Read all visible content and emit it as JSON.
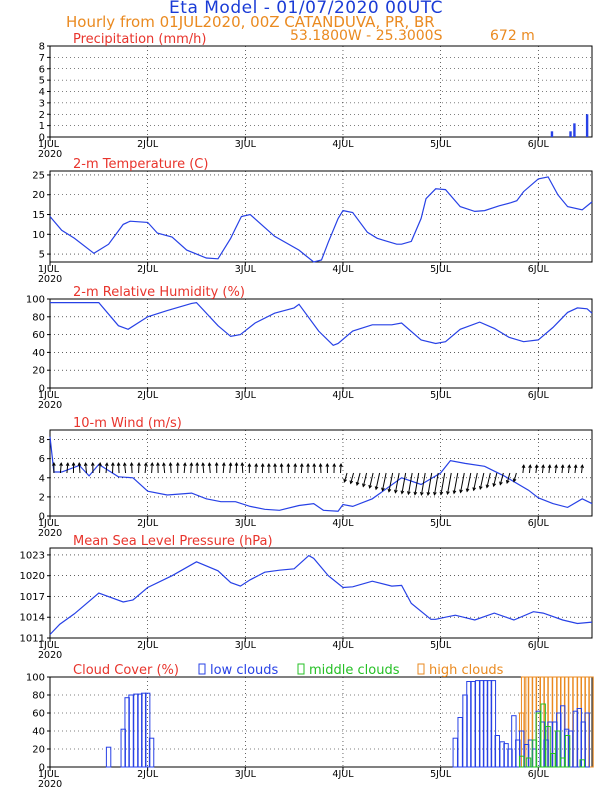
{
  "header": {
    "title": "Eta Model - 01/07/2020 00UTC",
    "subtitle": "Hourly from 01JUL2020, 00Z  CATANDUVA, PR, BR",
    "coords": "53.1800W - 25.3000S",
    "elevation": "672   m"
  },
  "colors": {
    "panel_title": "#e8342c",
    "line": "#2741e6",
    "low_clouds": "#2741e6",
    "middle_clouds": "#25c025",
    "high_clouds": "#ea8a20",
    "vector": "#000000"
  },
  "x_axis": {
    "ticks": [
      {
        "label": "1JUL",
        "day": 0
      },
      {
        "label": "2JUL",
        "day": 1
      },
      {
        "label": "3JUL",
        "day": 2
      },
      {
        "label": "4JUL",
        "day": 3
      },
      {
        "label": "5JUL",
        "day": 4
      },
      {
        "label": "6JUL",
        "day": 5
      }
    ],
    "year_label": "2020",
    "range": [
      0,
      5.55
    ]
  },
  "chart_data": [
    {
      "id": "precip",
      "type": "bar",
      "title": "Precipitation (mm/h)",
      "ylim": [
        0,
        8
      ],
      "yticks": [
        0,
        1,
        2,
        3,
        4,
        5,
        6,
        7,
        8
      ],
      "grid": true,
      "x": [
        5.14,
        5.33,
        5.37,
        5.5
      ],
      "values": [
        0.5,
        0.5,
        1.2,
        2.0
      ]
    },
    {
      "id": "temp",
      "type": "line",
      "title": "2-m Temperature (C)",
      "ylim": [
        3,
        26
      ],
      "yticks": [
        5,
        10,
        15,
        20,
        25
      ],
      "grid": true,
      "x": [
        0,
        0.12,
        0.25,
        0.45,
        0.6,
        0.75,
        0.82,
        1.0,
        1.1,
        1.25,
        1.4,
        1.6,
        1.72,
        1.85,
        1.9,
        1.96,
        2.05,
        2.3,
        2.55,
        2.6,
        2.7,
        2.78,
        2.85,
        2.95,
        3.0,
        3.1,
        3.25,
        3.35,
        3.55,
        3.6,
        3.7,
        3.8,
        3.85,
        3.95,
        4.05,
        4.2,
        4.35,
        4.45,
        4.6,
        4.72,
        4.78,
        4.85,
        5.0,
        5.1,
        5.2,
        5.3,
        5.45,
        5.55
      ],
      "values": [
        14.5,
        11,
        9,
        5.2,
        7.5,
        12.5,
        13.3,
        13,
        10.3,
        9.3,
        6,
        4,
        3.8,
        9,
        11.5,
        14.5,
        15,
        9.5,
        6,
        5,
        3,
        3.5,
        8,
        14,
        16,
        15.5,
        10.5,
        9,
        7.5,
        7.5,
        8.2,
        14,
        19,
        21.5,
        21.3,
        17,
        15.8,
        16,
        17.2,
        18,
        18.5,
        20.8,
        24,
        24.5,
        20,
        17,
        16.2,
        18.2
      ]
    },
    {
      "id": "rh",
      "type": "line",
      "title": "2-m Relative Humidity (%)",
      "ylim": [
        0,
        100
      ],
      "yticks": [
        0,
        20,
        40,
        60,
        80,
        100
      ],
      "grid": true,
      "x": [
        0,
        0.2,
        0.5,
        0.7,
        0.8,
        1.0,
        1.2,
        1.45,
        1.5,
        1.72,
        1.85,
        1.95,
        2.1,
        2.3,
        2.5,
        2.55,
        2.75,
        2.9,
        2.95,
        3.1,
        3.3,
        3.5,
        3.6,
        3.8,
        3.95,
        4.05,
        4.2,
        4.4,
        4.55,
        4.7,
        4.85,
        5.0,
        5.15,
        5.3,
        5.4,
        5.5,
        5.55
      ],
      "values": [
        96,
        96,
        96,
        70,
        66,
        80,
        87,
        95,
        96,
        70,
        58,
        60,
        73,
        84,
        90,
        94,
        64,
        48,
        50,
        64,
        71,
        71,
        73,
        54,
        50,
        52,
        66,
        74,
        67,
        57,
        52,
        54,
        68,
        85,
        90,
        89,
        84
      ]
    },
    {
      "id": "wind",
      "type": "line",
      "title": "10-m Wind (m/s)",
      "ylim": [
        0,
        9
      ],
      "yticks": [
        0,
        2,
        4,
        6,
        8
      ],
      "grid": true,
      "x": [
        0,
        0.04,
        0.12,
        0.3,
        0.4,
        0.5,
        0.7,
        0.85,
        1.0,
        1.2,
        1.45,
        1.6,
        1.75,
        1.9,
        2.05,
        2.2,
        2.35,
        2.55,
        2.7,
        2.8,
        2.95,
        3.0,
        3.1,
        3.3,
        3.6,
        3.8,
        4.0,
        4.1,
        4.25,
        4.45,
        4.65,
        4.9,
        5.0,
        5.15,
        5.3,
        5.45,
        5.55
      ],
      "values": [
        8.3,
        4.6,
        4.6,
        5.3,
        4.2,
        5.4,
        4.1,
        4.0,
        2.6,
        2.2,
        2.4,
        1.8,
        1.5,
        1.5,
        1.0,
        0.7,
        0.6,
        1.1,
        1.3,
        0.6,
        0.5,
        1.2,
        1.0,
        1.8,
        4.0,
        3.3,
        4.5,
        5.8,
        5.5,
        5.2,
        4.2,
        2.7,
        1.9,
        1.3,
        0.9,
        1.8,
        1.3
      ],
      "vectors": {
        "x_start": 0.04,
        "x_end": 5.5,
        "step": 0.0667
      }
    },
    {
      "id": "mslp",
      "type": "line",
      "title": "Mean Sea Level Pressure (hPa)",
      "ylim": [
        1011,
        1024
      ],
      "yticks": [
        1011,
        1014,
        1017,
        1020,
        1023
      ],
      "grid": true,
      "x": [
        0,
        0.1,
        0.25,
        0.5,
        0.75,
        0.85,
        1.0,
        1.25,
        1.5,
        1.72,
        1.85,
        1.95,
        2.05,
        2.2,
        2.35,
        2.5,
        2.65,
        2.7,
        2.85,
        3.0,
        3.1,
        3.3,
        3.5,
        3.6,
        3.7,
        3.9,
        3.95,
        4.05,
        4.15,
        4.35,
        4.55,
        4.75,
        4.95,
        5.05,
        5.25,
        5.4,
        5.55
      ],
      "values": [
        1011.5,
        1013,
        1014.5,
        1017.5,
        1016.2,
        1016.5,
        1018.3,
        1020,
        1022,
        1020.7,
        1019,
        1018.5,
        1019.4,
        1020.5,
        1020.8,
        1021,
        1022.9,
        1022.5,
        1020,
        1018.3,
        1018.4,
        1019.2,
        1018.5,
        1018.6,
        1016,
        1013.7,
        1013.7,
        1014,
        1014.3,
        1013.6,
        1014.6,
        1013.6,
        1014.8,
        1014.6,
        1013.6,
        1013.1,
        1013.3
      ]
    },
    {
      "id": "clouds",
      "type": "bar",
      "title": "Cloud Cover (%)",
      "ylim": [
        0,
        100
      ],
      "yticks": [
        0,
        20,
        40,
        60,
        80,
        100
      ],
      "grid": true,
      "legend": [
        "low clouds",
        "middle clouds",
        "high clouds"
      ],
      "series": [
        {
          "name": "low clouds",
          "x": [
            0.6,
            0.75,
            0.79,
            0.83,
            0.88,
            0.92,
            0.96,
            1.0,
            1.04,
            4.15,
            4.2,
            4.25,
            4.29,
            4.33,
            4.38,
            4.42,
            4.46,
            4.5,
            4.54,
            4.58,
            4.63,
            4.67,
            4.71,
            4.75,
            4.79,
            4.83,
            4.88,
            4.92,
            4.96,
            5.0,
            5.04,
            5.08,
            5.12,
            5.17,
            5.21,
            5.25,
            5.29,
            5.33,
            5.38,
            5.42,
            5.46,
            5.5
          ],
          "values": [
            22,
            42,
            77,
            80,
            81,
            81,
            82,
            82,
            32,
            32,
            55,
            80,
            95,
            95,
            96,
            96,
            96,
            96,
            96,
            35,
            28,
            26,
            20,
            57,
            30,
            40,
            25,
            30,
            20,
            62,
            50,
            30,
            50,
            50,
            60,
            68,
            42,
            40,
            62,
            65,
            50,
            60
          ]
        },
        {
          "name": "middle clouds",
          "x": [
            4.83,
            4.9,
            4.96,
            5.0,
            5.05,
            5.1,
            5.15,
            5.2,
            5.25,
            5.3,
            5.45
          ],
          "values": [
            12,
            10,
            30,
            60,
            70,
            45,
            15,
            40,
            10,
            35,
            8
          ]
        },
        {
          "name": "high clouds",
          "x": [
            4.83,
            4.85,
            4.88,
            4.92,
            4.96,
            5.0,
            5.04,
            5.08,
            5.12,
            5.17,
            5.21,
            5.25,
            5.29,
            5.33,
            5.38,
            5.42,
            5.46,
            5.5,
            5.54
          ],
          "values": [
            60,
            100,
            100,
            100,
            100,
            100,
            100,
            100,
            100,
            100,
            100,
            100,
            100,
            100,
            100,
            100,
            100,
            100,
            100
          ]
        }
      ]
    }
  ]
}
